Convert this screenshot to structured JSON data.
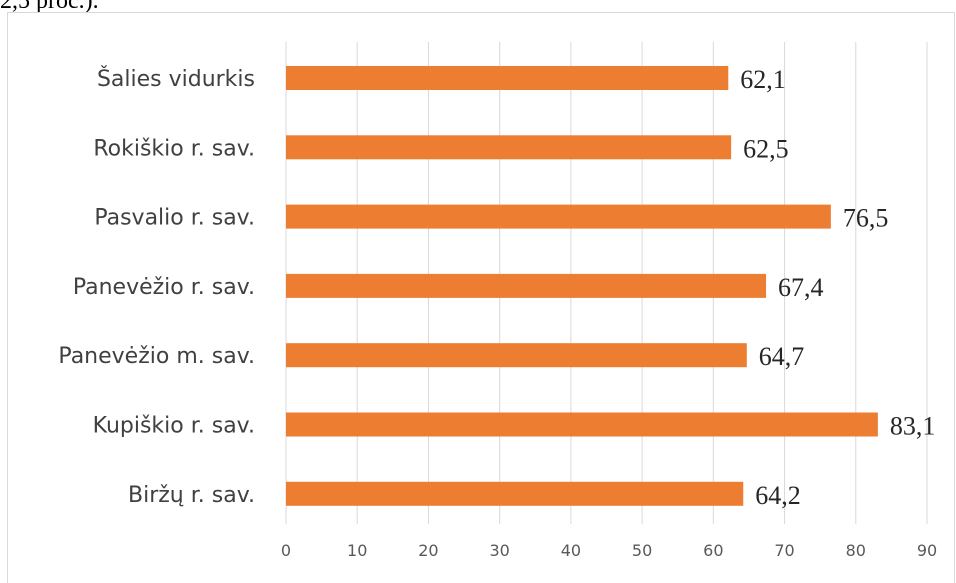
{
  "page": {
    "top_fragment": "2,5 proc.)."
  },
  "chart_data": {
    "type": "bar",
    "orientation": "horizontal",
    "categories": [
      "Šalies vidurkis",
      "Rokiškio r. sav.",
      "Pasvalio r. sav.",
      "Panevėžio r. sav.",
      "Panevėžio m. sav.",
      "Kupiškio r. sav.",
      "Biržų r. sav."
    ],
    "values": [
      62.1,
      62.5,
      76.5,
      67.4,
      64.7,
      83.1,
      64.2
    ],
    "value_labels": [
      "62,1",
      "62,5",
      "76,5",
      "67,4",
      "64,7",
      "83,1",
      "64,2"
    ],
    "xlim": [
      0,
      90
    ],
    "x_ticks": [
      0,
      10,
      20,
      30,
      40,
      50,
      60,
      70,
      80,
      90
    ],
    "grid": true,
    "bar_color": "#ED7D31",
    "grid_color": "#d9d9d9",
    "title": "",
    "xlabel": "",
    "ylabel": ""
  }
}
